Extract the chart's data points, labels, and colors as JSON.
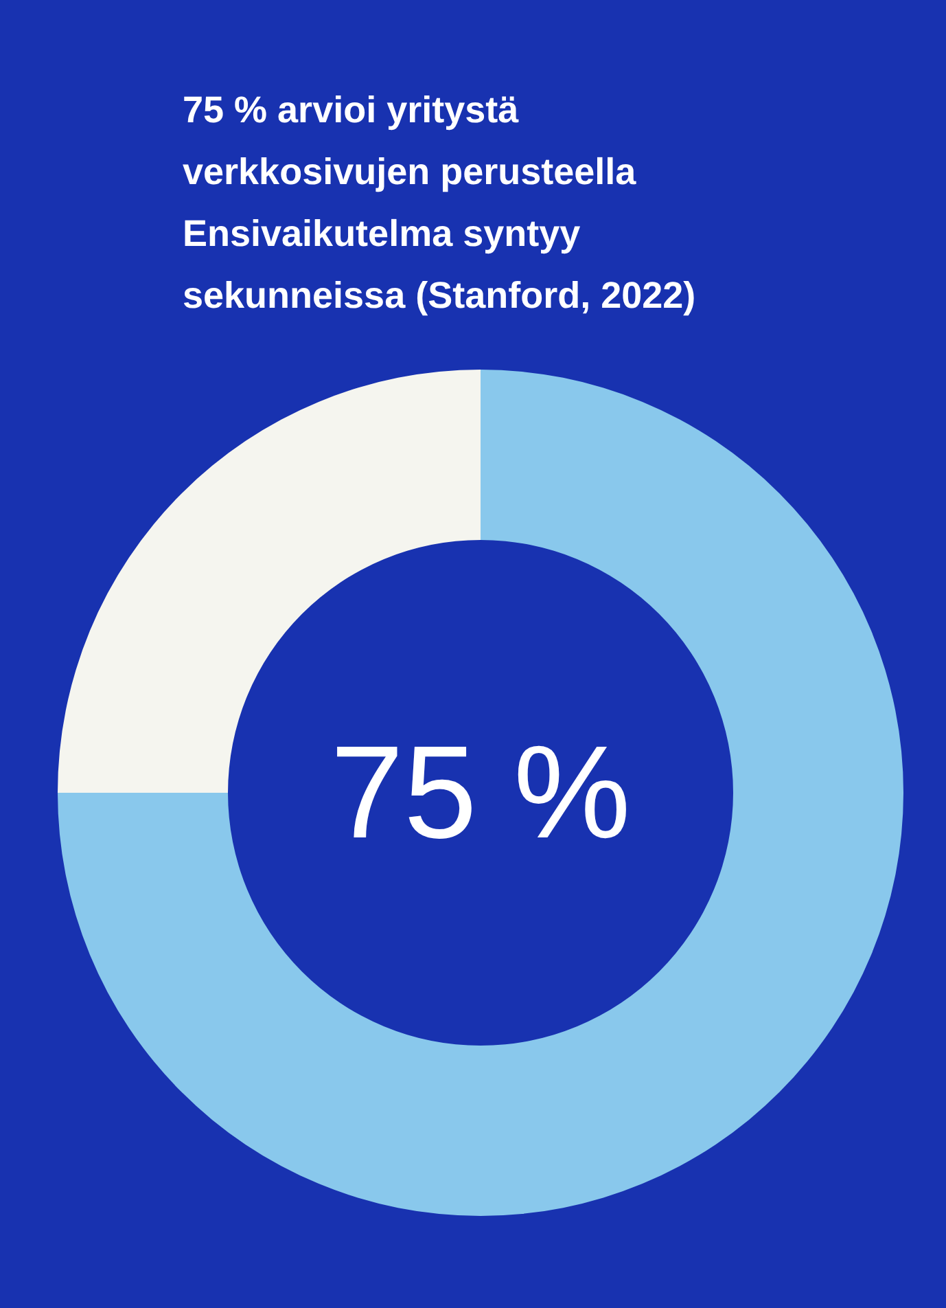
{
  "chart_data": {
    "type": "donut",
    "title": "75 % arvioi yritystä verkkosivujen perusteella",
    "subtitle": "Ensivaikutelma syntyy sekunneissa (Stanford, 2022)",
    "categories": [
      null,
      null
    ],
    "values": [
      75,
      25
    ],
    "colors": [
      "#89c8ec",
      "#f5f5ef"
    ],
    "value_labels": [
      "75 %",
      null
    ],
    "legend": false
  }
}
